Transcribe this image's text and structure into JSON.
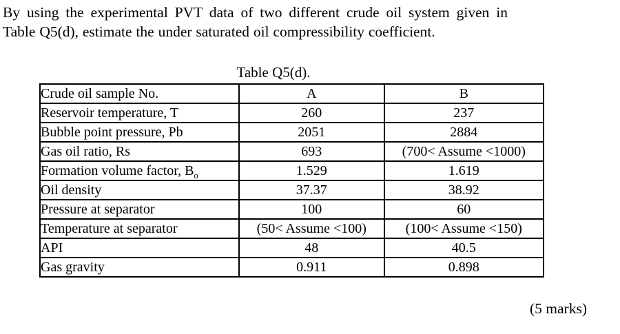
{
  "question": {
    "lines": [
      "By using the experimental PVT data of two different crude oil system given in",
      "Table Q5(d), estimate the under saturated oil compressibility coefficient."
    ]
  },
  "table": {
    "title": "Table Q5(d).",
    "rows": [
      {
        "label": "Crude oil sample No.",
        "a": "A",
        "b": "B"
      },
      {
        "label": "Reservoir temperature, T",
        "a": "260",
        "b": "237"
      },
      {
        "label": "Bubble point pressure, Pb",
        "a": "2051",
        "b": "2884"
      },
      {
        "label": "Gas oil ratio, Rs",
        "a": "693",
        "b": "(700< Assume <1000)"
      },
      {
        "label": "Formation volume factor, B",
        "sub": "o",
        "a": "1.529",
        "b": "1.619"
      },
      {
        "label": "Oil density",
        "a": "37.37",
        "b": "38.92"
      },
      {
        "label": "Pressure at separator",
        "a": "100",
        "b": "60"
      },
      {
        "label": "Temperature at separator",
        "a": "(50< Assume <100)",
        "b": "(100< Assume <150)"
      },
      {
        "label": "API",
        "a": "48",
        "b": "40.5"
      },
      {
        "label": "Gas gravity",
        "a": "0.911",
        "b": "0.898"
      }
    ]
  },
  "marks": "(5 marks)",
  "colors": {
    "text": "#000000",
    "border": "#000000",
    "background": "#ffffff"
  }
}
